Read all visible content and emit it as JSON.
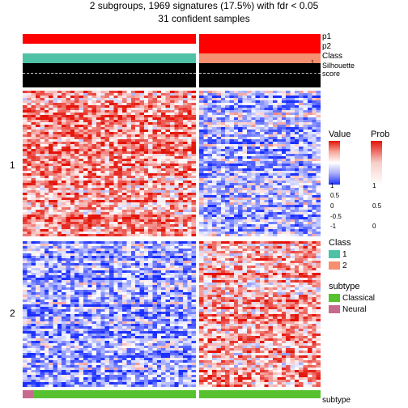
{
  "title_line1": "2 subgroups, 1969 signatures (17.5%) with fdr < 0.05",
  "title_line2": "31 confident samples",
  "title_fontsize": 12,
  "layout": {
    "col1_width": 214,
    "col2_width": 150,
    "col_gap": 4,
    "heatmap_height_block1": 180,
    "heatmap_height_block2": 180,
    "block_gap": 6
  },
  "annotation_rows": [
    {
      "name": "p1",
      "col1_color": "#ff0000",
      "col2_color": "#ff0000"
    },
    {
      "name": "p2",
      "col1_color": "#ffffff",
      "col2_color": "#ff0000"
    },
    {
      "name": "Class",
      "col1_color": "#4fc1a7",
      "col2_color": "#f58f70"
    }
  ],
  "silhouette": {
    "label": "Silhouette\nscore",
    "ticks": [
      "0",
      "0.5",
      "1"
    ],
    "block_color": "#000000",
    "dash_color": "#d0d0d0"
  },
  "heatmap": {
    "rows_block1": 60,
    "rows_block2": 60,
    "cols_col1": 40,
    "cols_col2": 28,
    "row_group_labels": [
      "1",
      "2"
    ],
    "value_palette": {
      "low": "#1b2fff",
      "mid": "#ffffff",
      "high": "#e4140a"
    }
  },
  "subtype_bar": {
    "col1": [
      {
        "color": "#c86a8e",
        "frac": 0.03
      },
      {
        "color": "#c86a8e",
        "frac": 0.03
      },
      {
        "color": "#57c22f",
        "frac": 0.94
      }
    ],
    "col2": [
      {
        "color": "#57c22f",
        "frac": 1.0
      }
    ],
    "label": "subtype"
  },
  "legends": {
    "value": {
      "title": "Value",
      "gradient": [
        "#e4140a",
        "#f7a79a",
        "#ffffff",
        "#a7acf7",
        "#1b2fff"
      ],
      "ticks": [
        "1",
        "0.5",
        "0",
        "-0.5",
        "-1"
      ]
    },
    "prob": {
      "title": "Prob",
      "gradient": [
        "#e4140a",
        "#f7cfca",
        "#ffffff"
      ],
      "ticks": [
        "1",
        "0.5",
        "0"
      ]
    },
    "class": {
      "title": "Class",
      "items": [
        {
          "color": "#4fc1a7",
          "label": "1"
        },
        {
          "color": "#f58f70",
          "label": "2"
        }
      ]
    },
    "subtype": {
      "title": "subtype",
      "items": [
        {
          "color": "#57c22f",
          "label": "Classical"
        },
        {
          "color": "#c86a8e",
          "label": "Neural"
        }
      ]
    }
  }
}
